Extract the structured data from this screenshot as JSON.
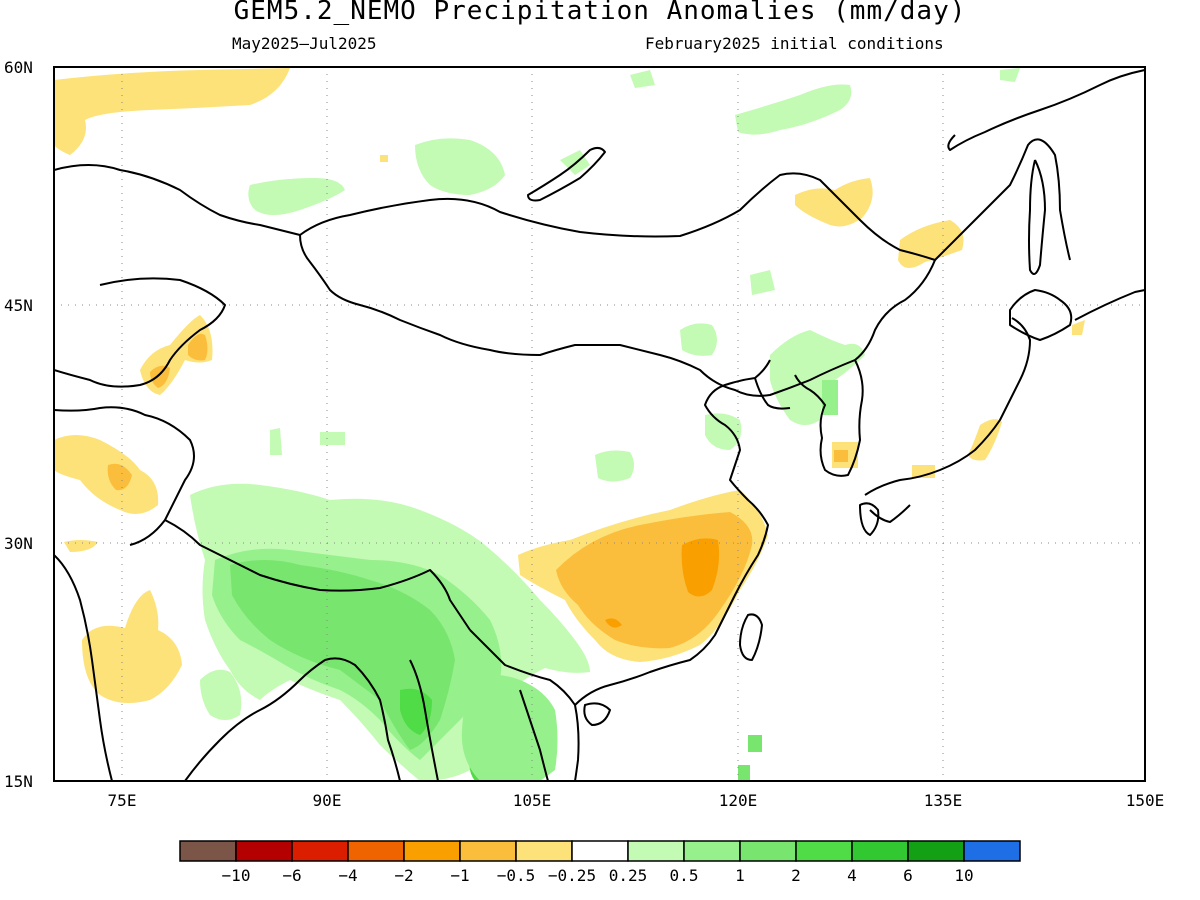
{
  "title": "GEM5.2_NEMO Precipitation Anomalies (mm/day)",
  "subtitle_left": "May2025—Jul2025",
  "subtitle_right": "February2025 initial conditions",
  "map": {
    "lon_range": [
      70,
      150
    ],
    "lat_range": [
      15,
      60
    ],
    "lon_ticks": [
      "75E",
      "90E",
      "105E",
      "120E",
      "135E",
      "150E"
    ],
    "lat_ticks": [
      "60N",
      "45N",
      "30N",
      "15N"
    ],
    "grid": "dotted"
  },
  "legend": {
    "colors": [
      "#7a5548",
      "#b40000",
      "#dc1e00",
      "#f06400",
      "#f9a000",
      "#fbbe3c",
      "#fde27a",
      "#ffffff",
      "#c3fab4",
      "#96f08c",
      "#78e66e",
      "#50dc46",
      "#32c832",
      "#14a014",
      "#1e6ee6"
    ],
    "labels": [
      "−10",
      "−6",
      "−4",
      "−2",
      "−1",
      "−0.5",
      "−0.25",
      "0.25",
      "0.5",
      "1",
      "2",
      "4",
      "6",
      "10"
    ]
  }
}
